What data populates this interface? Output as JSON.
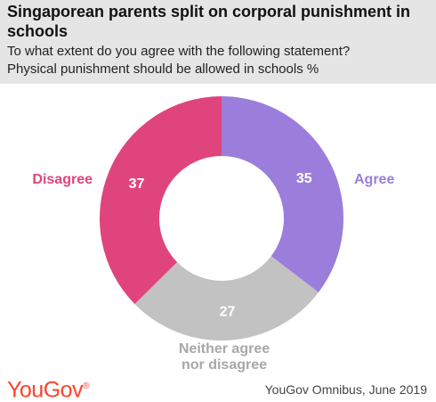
{
  "header": {
    "title": "Singaporean parents split on corporal punishment in schools",
    "subtitle_line1": "To what extent do you agree with the following statement?",
    "subtitle_line2": "Physical punishment should be allowed in schools %"
  },
  "chart_data": {
    "type": "pie",
    "donut": true,
    "slices": [
      {
        "label": "Agree",
        "label_lines": [
          "Agree"
        ],
        "value": 35,
        "color": "#9b7ddb"
      },
      {
        "label": "Neither agree nor disagree",
        "label_lines": [
          "Neither agree",
          "nor disagree"
        ],
        "value": 27,
        "color": "#c2c2c2"
      },
      {
        "label": "Disagree",
        "label_lines": [
          "Disagree"
        ],
        "value": 37,
        "color": "#e0447d"
      }
    ],
    "legend": "none"
  },
  "footer": {
    "logo": "YouGov",
    "logo_mark": "®",
    "source": "YouGov Omnibus, June 2019"
  }
}
